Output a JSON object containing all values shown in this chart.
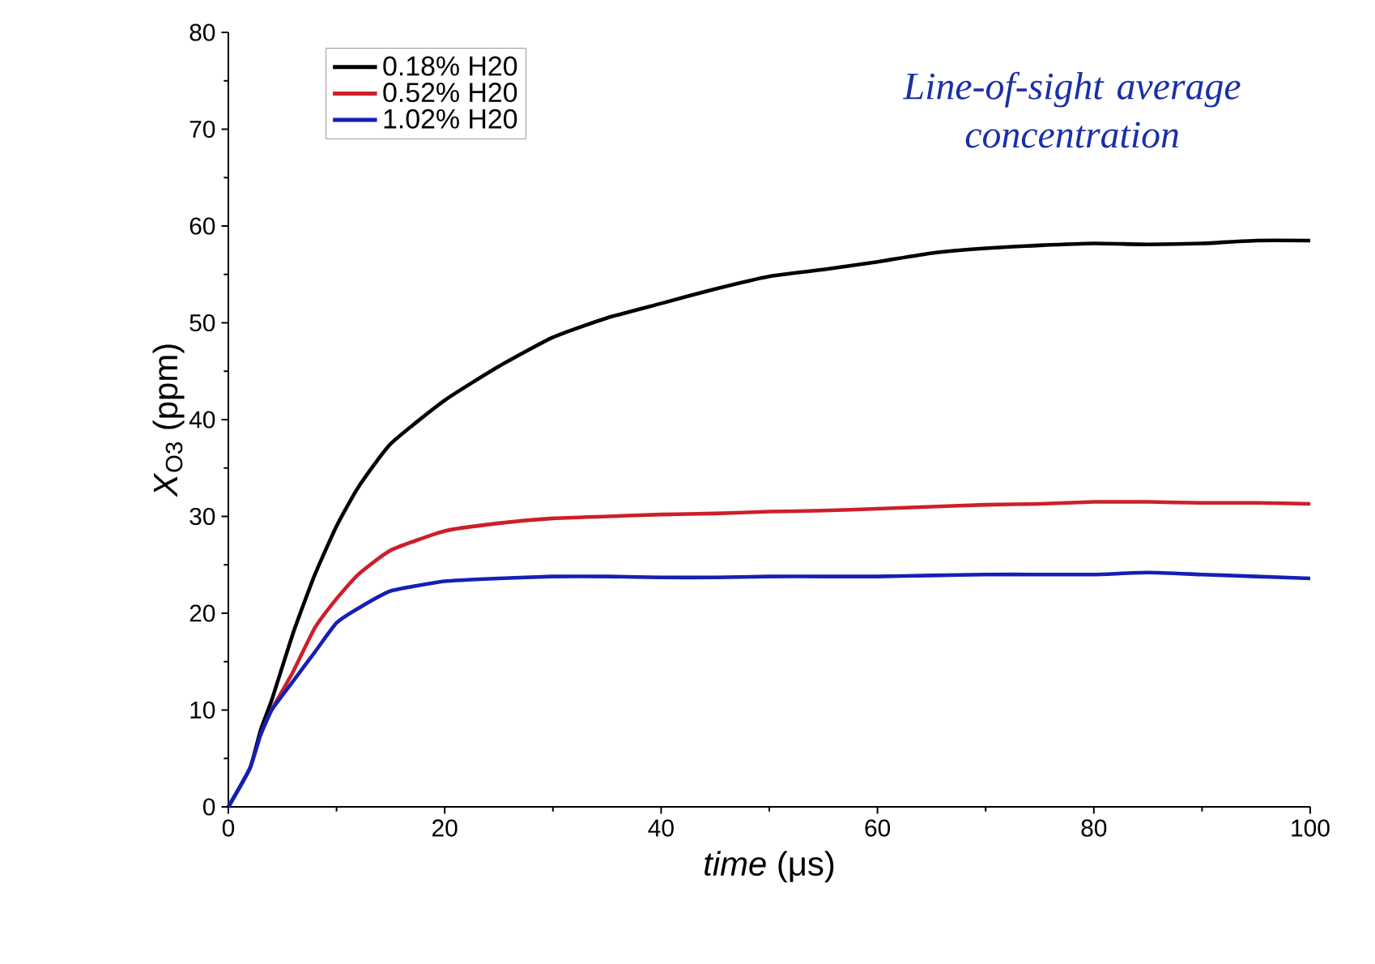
{
  "chart_data": {
    "type": "line",
    "xlabel": "*time* (μs)",
    "ylabel": "*X*$_{O3}$ (ppm)",
    "annotations": [
      "Line-of-sight average concentration"
    ],
    "xlim": [
      0,
      100
    ],
    "xticks": [
      0,
      20,
      40,
      60,
      80,
      100
    ],
    "ylim": [
      0,
      80
    ],
    "yticks": [
      0,
      10,
      20,
      30,
      40,
      50,
      60,
      70,
      80
    ],
    "legend": "top left",
    "grid": false,
    "marker": "none",
    "line_style": "solid",
    "x": [
      0,
      2,
      3,
      4,
      6,
      8,
      10,
      12,
      15,
      20,
      25,
      30,
      35,
      40,
      45,
      50,
      55,
      60,
      65,
      70,
      75,
      80,
      85,
      90,
      95,
      100
    ],
    "series": [
      {
        "name": "0.18% H20",
        "color": "#000000",
        "values": [
          0,
          4,
          8,
          11,
          18,
          24,
          29,
          33,
          37.5,
          42,
          45.5,
          48.5,
          50.5,
          52,
          53.5,
          54.8,
          55.5,
          56.3,
          57.2,
          57.7,
          58,
          58.2,
          58.1,
          58.2,
          58.5,
          58.5
        ]
      },
      {
        "name": "0.52% H20",
        "color": "#cc1f2a",
        "values": [
          null,
          null,
          7.5,
          10,
          14,
          18.5,
          21.5,
          24,
          26.5,
          28.5,
          29.3,
          29.8,
          30,
          30.2,
          30.3,
          30.5,
          30.6,
          30.8,
          31,
          31.2,
          31.3,
          31.5,
          31.5,
          31.4,
          31.4,
          31.3
        ]
      },
      {
        "name": "1.02% H20",
        "color": "#1420b4",
        "values": [
          0,
          4,
          7.5,
          10,
          13,
          16,
          19,
          20.5,
          22.3,
          23.3,
          23.6,
          23.8,
          23.8,
          23.7,
          23.7,
          23.8,
          23.8,
          23.8,
          23.9,
          24,
          24,
          24,
          24.2,
          24,
          23.8,
          23.6
        ]
      }
    ]
  }
}
